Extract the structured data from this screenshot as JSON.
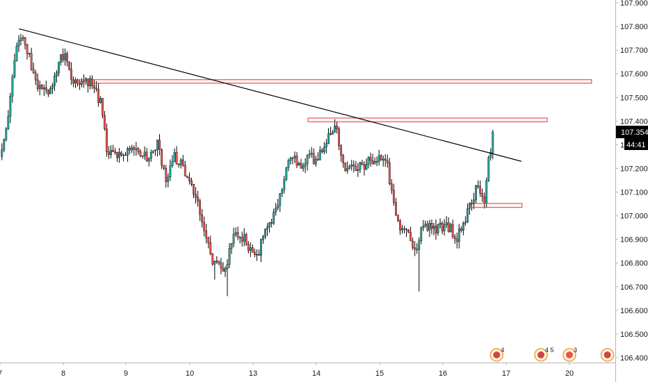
{
  "chart_data": {
    "type": "candlestick",
    "title": "",
    "xlabel": "",
    "ylabel": "",
    "ylim": [
      106.365,
      107.95
    ],
    "y_ticks": [
      "107.900",
      "107.800",
      "107.700",
      "107.600",
      "107.500",
      "107.400",
      "107.300",
      "107.200",
      "107.100",
      "107.000",
      "106.900",
      "106.800",
      "106.700",
      "106.600",
      "106.500",
      "106.400"
    ],
    "x_ticks": [
      {
        "label": "7",
        "session": 0
      },
      {
        "label": "8",
        "session": 1
      },
      {
        "label": "9",
        "session": 2
      },
      {
        "label": "10",
        "session": 3
      },
      {
        "label": "13",
        "session": 4
      },
      {
        "label": "14",
        "session": 5
      },
      {
        "label": "15",
        "session": 6
      },
      {
        "label": "16",
        "session": 7
      },
      {
        "label": "17",
        "session": 8
      },
      {
        "label": "20",
        "session": 9
      }
    ],
    "x_start_session": 0.03,
    "x_end_session": 9.65,
    "current_price": "107.354",
    "countdown": "44:41",
    "colors": {
      "up": "#26a69a",
      "down": "#ef5350",
      "trendline": "#000000",
      "zone": "#e53935",
      "price_tag": "#000000",
      "grid": "#e0e3eb"
    },
    "trendline": {
      "from": {
        "session": 0.3,
        "price": 107.79
      },
      "to": {
        "session": 8.24,
        "price": 107.23
      }
    },
    "zones": [
      {
        "from_session": 1.2,
        "to_session": 9.35,
        "top": 107.575,
        "bottom": 107.56
      },
      {
        "from_session": 4.87,
        "to_session": 8.65,
        "top": 107.413,
        "bottom": 107.397
      },
      {
        "from_session": 7.45,
        "to_session": 8.25,
        "top": 107.052,
        "bottom": 107.035
      }
    ],
    "waypoints": [
      [
        0.0,
        107.25
      ],
      [
        0.08,
        107.33
      ],
      [
        0.2,
        107.6
      ],
      [
        0.3,
        107.75
      ],
      [
        0.45,
        107.7
      ],
      [
        0.55,
        107.57
      ],
      [
        0.7,
        107.52
      ],
      [
        0.85,
        107.55
      ],
      [
        0.95,
        107.7
      ],
      [
        1.05,
        107.65
      ],
      [
        1.15,
        107.56
      ],
      [
        1.3,
        107.55
      ],
      [
        1.45,
        107.56
      ],
      [
        1.6,
        107.48
      ],
      [
        1.7,
        107.28
      ],
      [
        1.85,
        107.24
      ],
      [
        2.0,
        107.28
      ],
      [
        2.15,
        107.26
      ],
      [
        2.35,
        107.25
      ],
      [
        2.5,
        107.3
      ],
      [
        2.62,
        107.15
      ],
      [
        2.75,
        107.25
      ],
      [
        2.9,
        107.2
      ],
      [
        3.05,
        107.1
      ],
      [
        3.2,
        106.98
      ],
      [
        3.35,
        106.82
      ],
      [
        3.5,
        106.78
      ],
      [
        3.58,
        106.8
      ],
      [
        3.7,
        106.94
      ],
      [
        3.85,
        106.91
      ],
      [
        4.05,
        106.81
      ],
      [
        4.2,
        106.95
      ],
      [
        4.35,
        107.0
      ],
      [
        4.5,
        107.18
      ],
      [
        4.6,
        107.26
      ],
      [
        4.75,
        107.22
      ],
      [
        4.9,
        107.26
      ],
      [
        5.0,
        107.22
      ],
      [
        5.15,
        107.32
      ],
      [
        5.3,
        107.38
      ],
      [
        5.45,
        107.2
      ],
      [
        5.6,
        107.2
      ],
      [
        5.75,
        107.22
      ],
      [
        5.95,
        107.25
      ],
      [
        6.1,
        107.24
      ],
      [
        6.25,
        107.02
      ],
      [
        6.35,
        106.92
      ],
      [
        6.45,
        106.96
      ],
      [
        6.55,
        106.83
      ],
      [
        6.65,
        106.93
      ],
      [
        6.8,
        106.96
      ],
      [
        7.0,
        106.94
      ],
      [
        7.1,
        106.95
      ],
      [
        7.2,
        106.9
      ],
      [
        7.3,
        106.96
      ],
      [
        7.45,
        107.06
      ],
      [
        7.55,
        107.13
      ],
      [
        7.65,
        107.05
      ],
      [
        7.72,
        107.23
      ],
      [
        7.78,
        107.31
      ],
      [
        7.8,
        107.354
      ]
    ],
    "lows": [
      {
        "session": 3.6,
        "price": 106.66
      },
      {
        "session": 6.62,
        "price": 106.68
      },
      {
        "session": 3.4,
        "price": 106.73
      }
    ],
    "event_markers": [
      {
        "label": "4",
        "session": 7.85
      },
      {
        "label": "4 5",
        "session": 8.55
      },
      {
        "label": "3",
        "session": 9.0
      },
      {
        "label": "",
        "session": 9.6
      }
    ]
  }
}
